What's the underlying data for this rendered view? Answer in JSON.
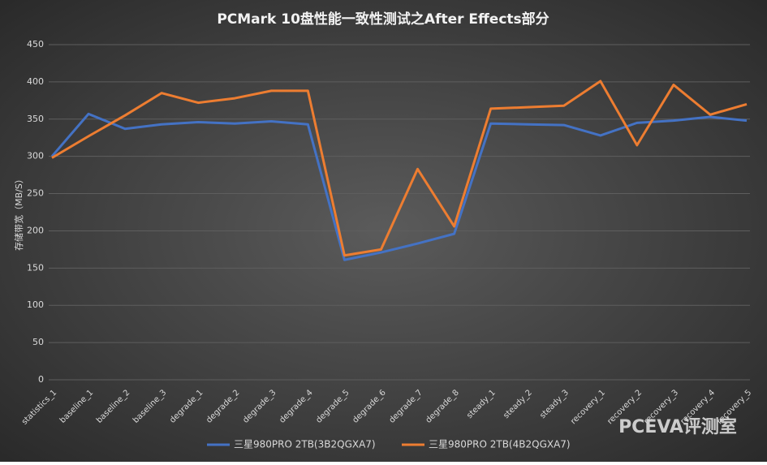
{
  "chart_data": {
    "type": "line",
    "title": "PCMark 10盘性能一致性测试之After Effects部分",
    "y_label": "存储带宽（MB/S）",
    "categories": [
      "statistics_1",
      "baseline_1",
      "baseline_2",
      "baseline_3",
      "degrade_1",
      "degrade_2",
      "degrade_3",
      "degrade_4",
      "degrade_5",
      "degrade_6",
      "degrade_7",
      "degrade_8",
      "steady_1",
      "steady_2",
      "steady_3",
      "recovery_1",
      "recovery_2",
      "recovery_3",
      "recovery_4",
      "recovery_5"
    ],
    "series": [
      {
        "name": "三星980PRO 2TB(3B2QGXA7)",
        "color": "#4472c4",
        "values": [
          300,
          357,
          337,
          343,
          346,
          344,
          347,
          343,
          161,
          171,
          183,
          196,
          344,
          343,
          342,
          328,
          345,
          348,
          353,
          348
        ]
      },
      {
        "name": "三星980PRO 2TB(4B2QGXA7)",
        "color": "#ed7d31",
        "values": [
          298,
          327,
          355,
          385,
          372,
          378,
          388,
          388,
          167,
          175,
          283,
          206,
          364,
          366,
          368,
          401,
          315,
          396,
          356,
          370
        ]
      }
    ],
    "ylim": [
      0,
      450
    ],
    "yticks": [
      0,
      50,
      100,
      150,
      200,
      250,
      300,
      350,
      400,
      450
    ],
    "grid": true,
    "legend": "bottom",
    "watermark": "PCEVA评测室"
  }
}
